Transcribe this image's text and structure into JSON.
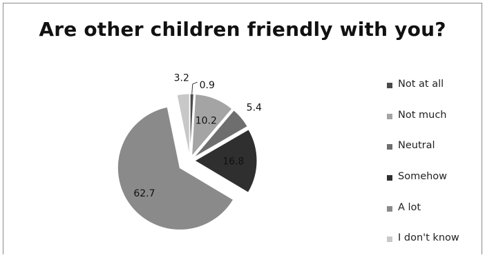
{
  "chart_data": {
    "type": "pie",
    "title": "Are other children friendly with you?",
    "categories": [
      "Not at all",
      "Not much",
      "Neutral",
      "Somehow",
      "A lot",
      "I don't know"
    ],
    "values": [
      0.9,
      10.2,
      5.4,
      16.8,
      62.7,
      3.2
    ],
    "data_labels": [
      "0.9",
      "10.2",
      "5.4",
      "16.8",
      "62.7",
      "3.2"
    ],
    "colors": [
      "#4a4a4a",
      "#a4a4a4",
      "#6e6e6e",
      "#2f2f2f",
      "#8a8a8a",
      "#c8c8c8"
    ],
    "legend_position": "right",
    "exploded": true
  }
}
